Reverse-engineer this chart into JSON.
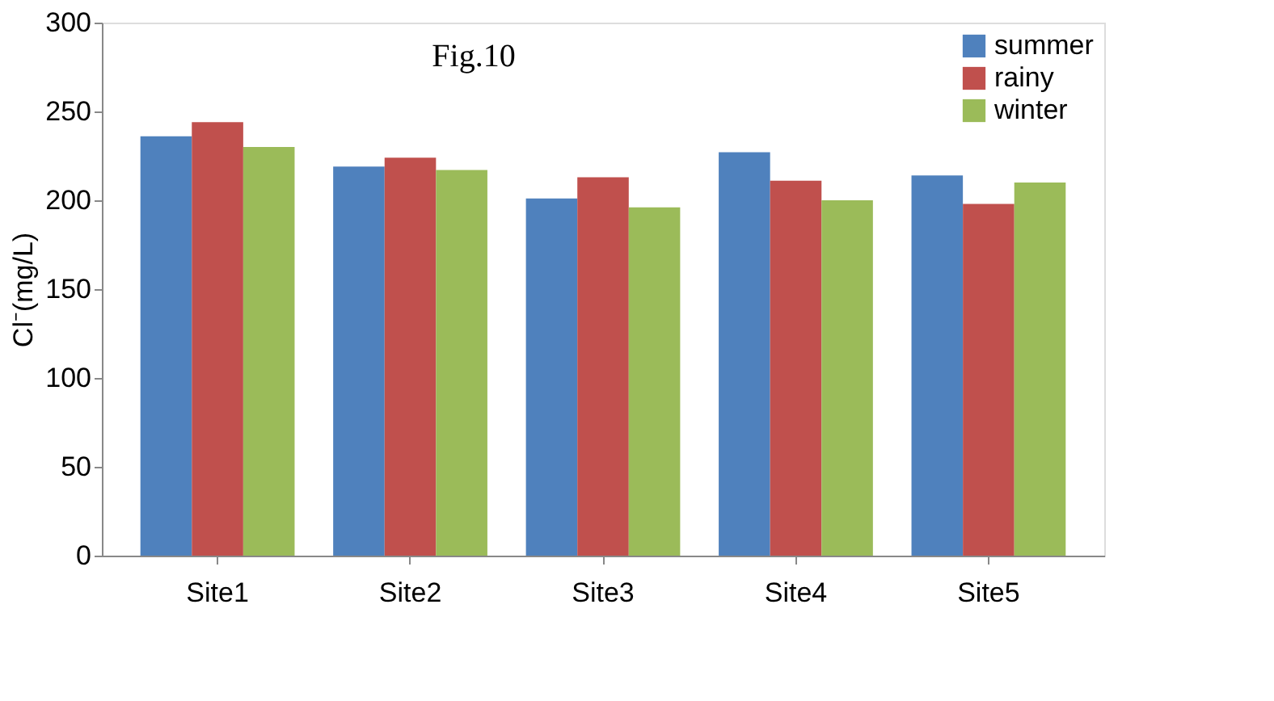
{
  "chart_data": {
    "type": "bar",
    "title": "Fig.10",
    "ylabel": "Cl⁻(mg/L)",
    "categories": [
      "Site1",
      "Site2",
      "Site3",
      "Site4",
      "Site5"
    ],
    "series": [
      {
        "name": "summer",
        "color": "#4f81bd",
        "values": [
          236,
          219,
          201,
          227,
          214
        ]
      },
      {
        "name": "rainy",
        "color": "#c0504d",
        "values": [
          244,
          224,
          213,
          211,
          198
        ]
      },
      {
        "name": "winter",
        "color": "#9bbb59",
        "values": [
          230,
          217,
          196,
          200,
          210
        ]
      }
    ],
    "ylim": [
      0,
      300
    ],
    "yticks": [
      0,
      50,
      100,
      150,
      200,
      250,
      300
    ],
    "grid": false,
    "legend": "top right"
  }
}
